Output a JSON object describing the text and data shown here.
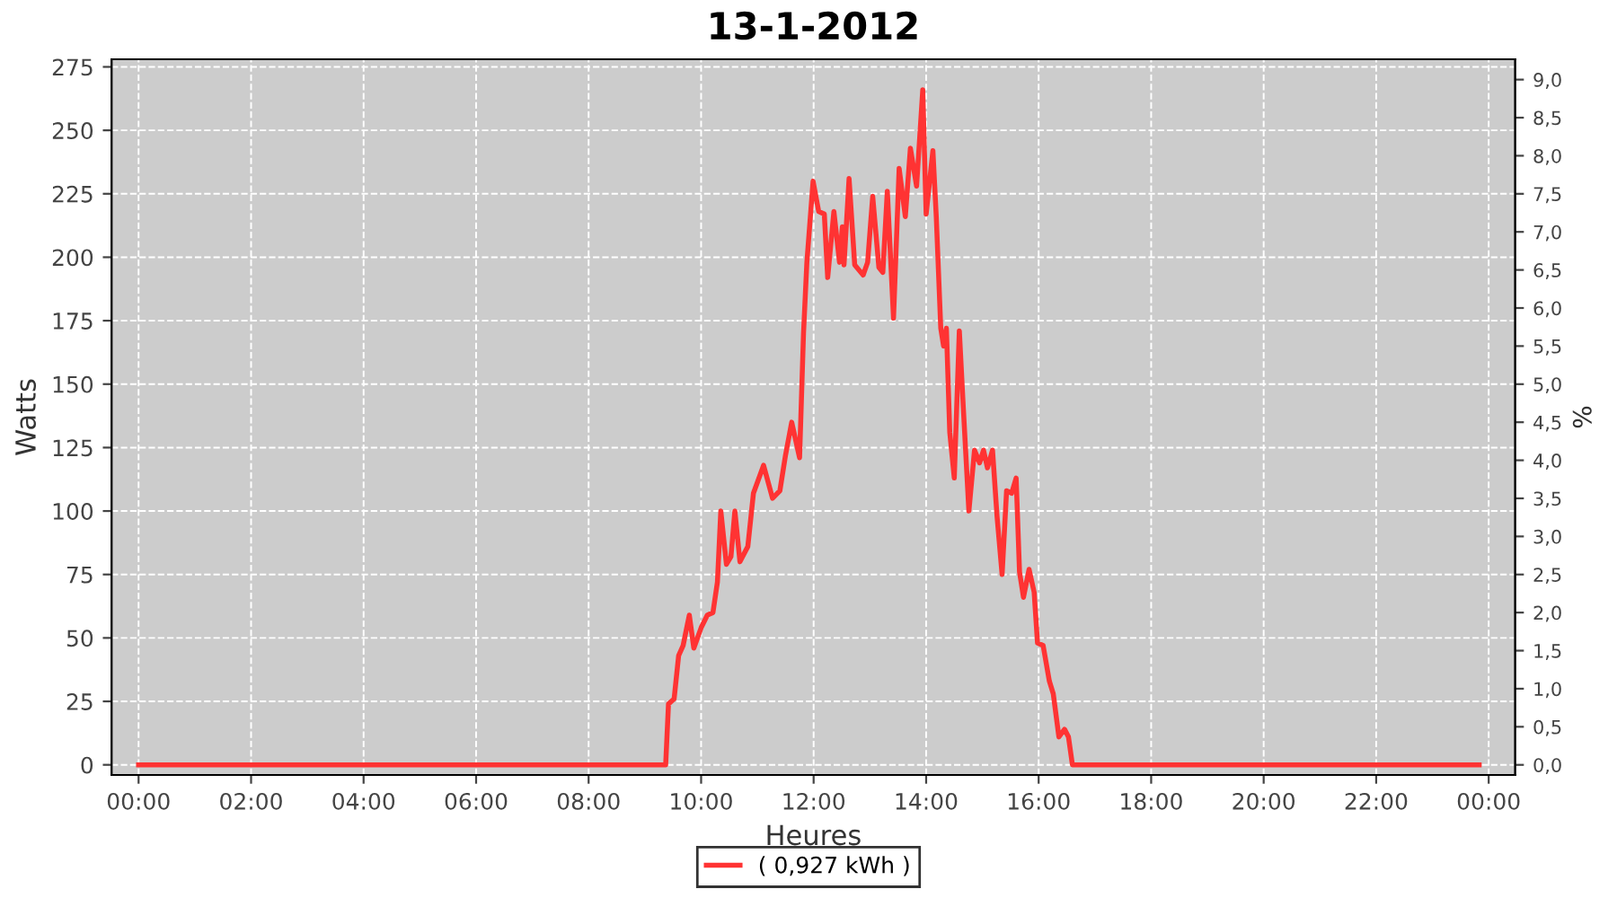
{
  "chart_data": {
    "type": "line",
    "title": "13-1-2012",
    "xlabel": "Heures",
    "ylabel": "Watts",
    "y2label": "%",
    "x": [
      0.0,
      9.37,
      9.42,
      9.52,
      9.6,
      9.68,
      9.79,
      9.87,
      10.0,
      10.11,
      10.21,
      10.29,
      10.35,
      10.45,
      10.53,
      10.6,
      10.69,
      10.83,
      10.93,
      11.11,
      11.27,
      11.4,
      11.5,
      11.61,
      11.75,
      11.82,
      11.88,
      11.99,
      12.09,
      12.19,
      12.25,
      12.36,
      12.46,
      12.51,
      12.54,
      12.63,
      12.73,
      12.88,
      12.96,
      13.05,
      13.16,
      13.23,
      13.31,
      13.42,
      13.52,
      13.63,
      13.72,
      13.83,
      13.94,
      14.0,
      14.12,
      14.18,
      14.26,
      14.31,
      14.36,
      14.42,
      14.5,
      14.59,
      14.66,
      14.76,
      14.86,
      14.95,
      15.02,
      15.09,
      15.18,
      15.26,
      15.35,
      15.43,
      15.52,
      15.6,
      15.66,
      15.73,
      15.83,
      15.92,
      15.98,
      16.08,
      16.19,
      16.26,
      16.36,
      16.46,
      16.53,
      16.6,
      23.83
    ],
    "series": [
      {
        "name": "( 0,927 kWh )",
        "color": "#ff3333",
        "values": [
          0,
          0,
          24,
          26,
          43,
          47,
          59,
          46,
          54,
          59,
          60,
          72,
          100,
          79,
          82,
          100,
          80,
          86,
          107,
          118,
          105,
          108,
          122,
          135,
          121,
          170,
          198,
          230,
          218,
          217,
          192,
          218,
          198,
          212,
          197,
          231,
          197,
          193,
          198,
          224,
          196,
          194,
          226,
          176,
          235,
          216,
          243,
          228,
          266,
          217,
          242,
          216,
          172,
          165,
          172,
          131,
          113,
          171,
          141,
          100,
          124,
          119,
          124,
          117,
          124,
          98,
          75,
          108,
          107,
          113,
          76,
          66,
          77,
          68,
          48,
          47,
          33,
          28,
          11,
          14,
          11,
          0,
          0
        ]
      }
    ],
    "xlim": [
      -0.48,
      24.47
    ],
    "xticks": [
      {
        "value": 0,
        "label": "00:00"
      },
      {
        "value": 2,
        "label": "02:00"
      },
      {
        "value": 4,
        "label": "04:00"
      },
      {
        "value": 6,
        "label": "06:00"
      },
      {
        "value": 8,
        "label": "08:00"
      },
      {
        "value": 10,
        "label": "10:00"
      },
      {
        "value": 12,
        "label": "12:00"
      },
      {
        "value": 14,
        "label": "14:00"
      },
      {
        "value": 16,
        "label": "16:00"
      },
      {
        "value": 18,
        "label": "18:00"
      },
      {
        "value": 20,
        "label": "20:00"
      },
      {
        "value": 22,
        "label": "22:00"
      },
      {
        "value": 24,
        "label": "00:00"
      }
    ],
    "ylim": [
      -4,
      278
    ],
    "yticks": [
      0,
      25,
      50,
      75,
      100,
      125,
      150,
      175,
      200,
      225,
      250,
      275
    ],
    "y2lim": [
      -0.133,
      9.267
    ],
    "y2ticks": [
      {
        "value": 0,
        "label": "0,0"
      },
      {
        "value": 0.5,
        "label": "0,5"
      },
      {
        "value": 1,
        "label": "1,0"
      },
      {
        "value": 1.5,
        "label": "1,5"
      },
      {
        "value": 2,
        "label": "2,0"
      },
      {
        "value": 2.5,
        "label": "2,5"
      },
      {
        "value": 3,
        "label": "3,0"
      },
      {
        "value": 3.5,
        "label": "3,5"
      },
      {
        "value": 4,
        "label": "4,0"
      },
      {
        "value": 4.5,
        "label": "4,5"
      },
      {
        "value": 5,
        "label": "5,0"
      },
      {
        "value": 5.5,
        "label": "5,5"
      },
      {
        "value": 6,
        "label": "6,0"
      },
      {
        "value": 6.5,
        "label": "6,5"
      },
      {
        "value": 7,
        "label": "7,0"
      },
      {
        "value": 7.5,
        "label": "7,5"
      },
      {
        "value": 8,
        "label": "8,0"
      },
      {
        "value": 8.5,
        "label": "8,5"
      },
      {
        "value": 9,
        "label": "9,0"
      }
    ],
    "grid": true,
    "legend": "bottom",
    "marker": "none",
    "line_style": "solid"
  }
}
